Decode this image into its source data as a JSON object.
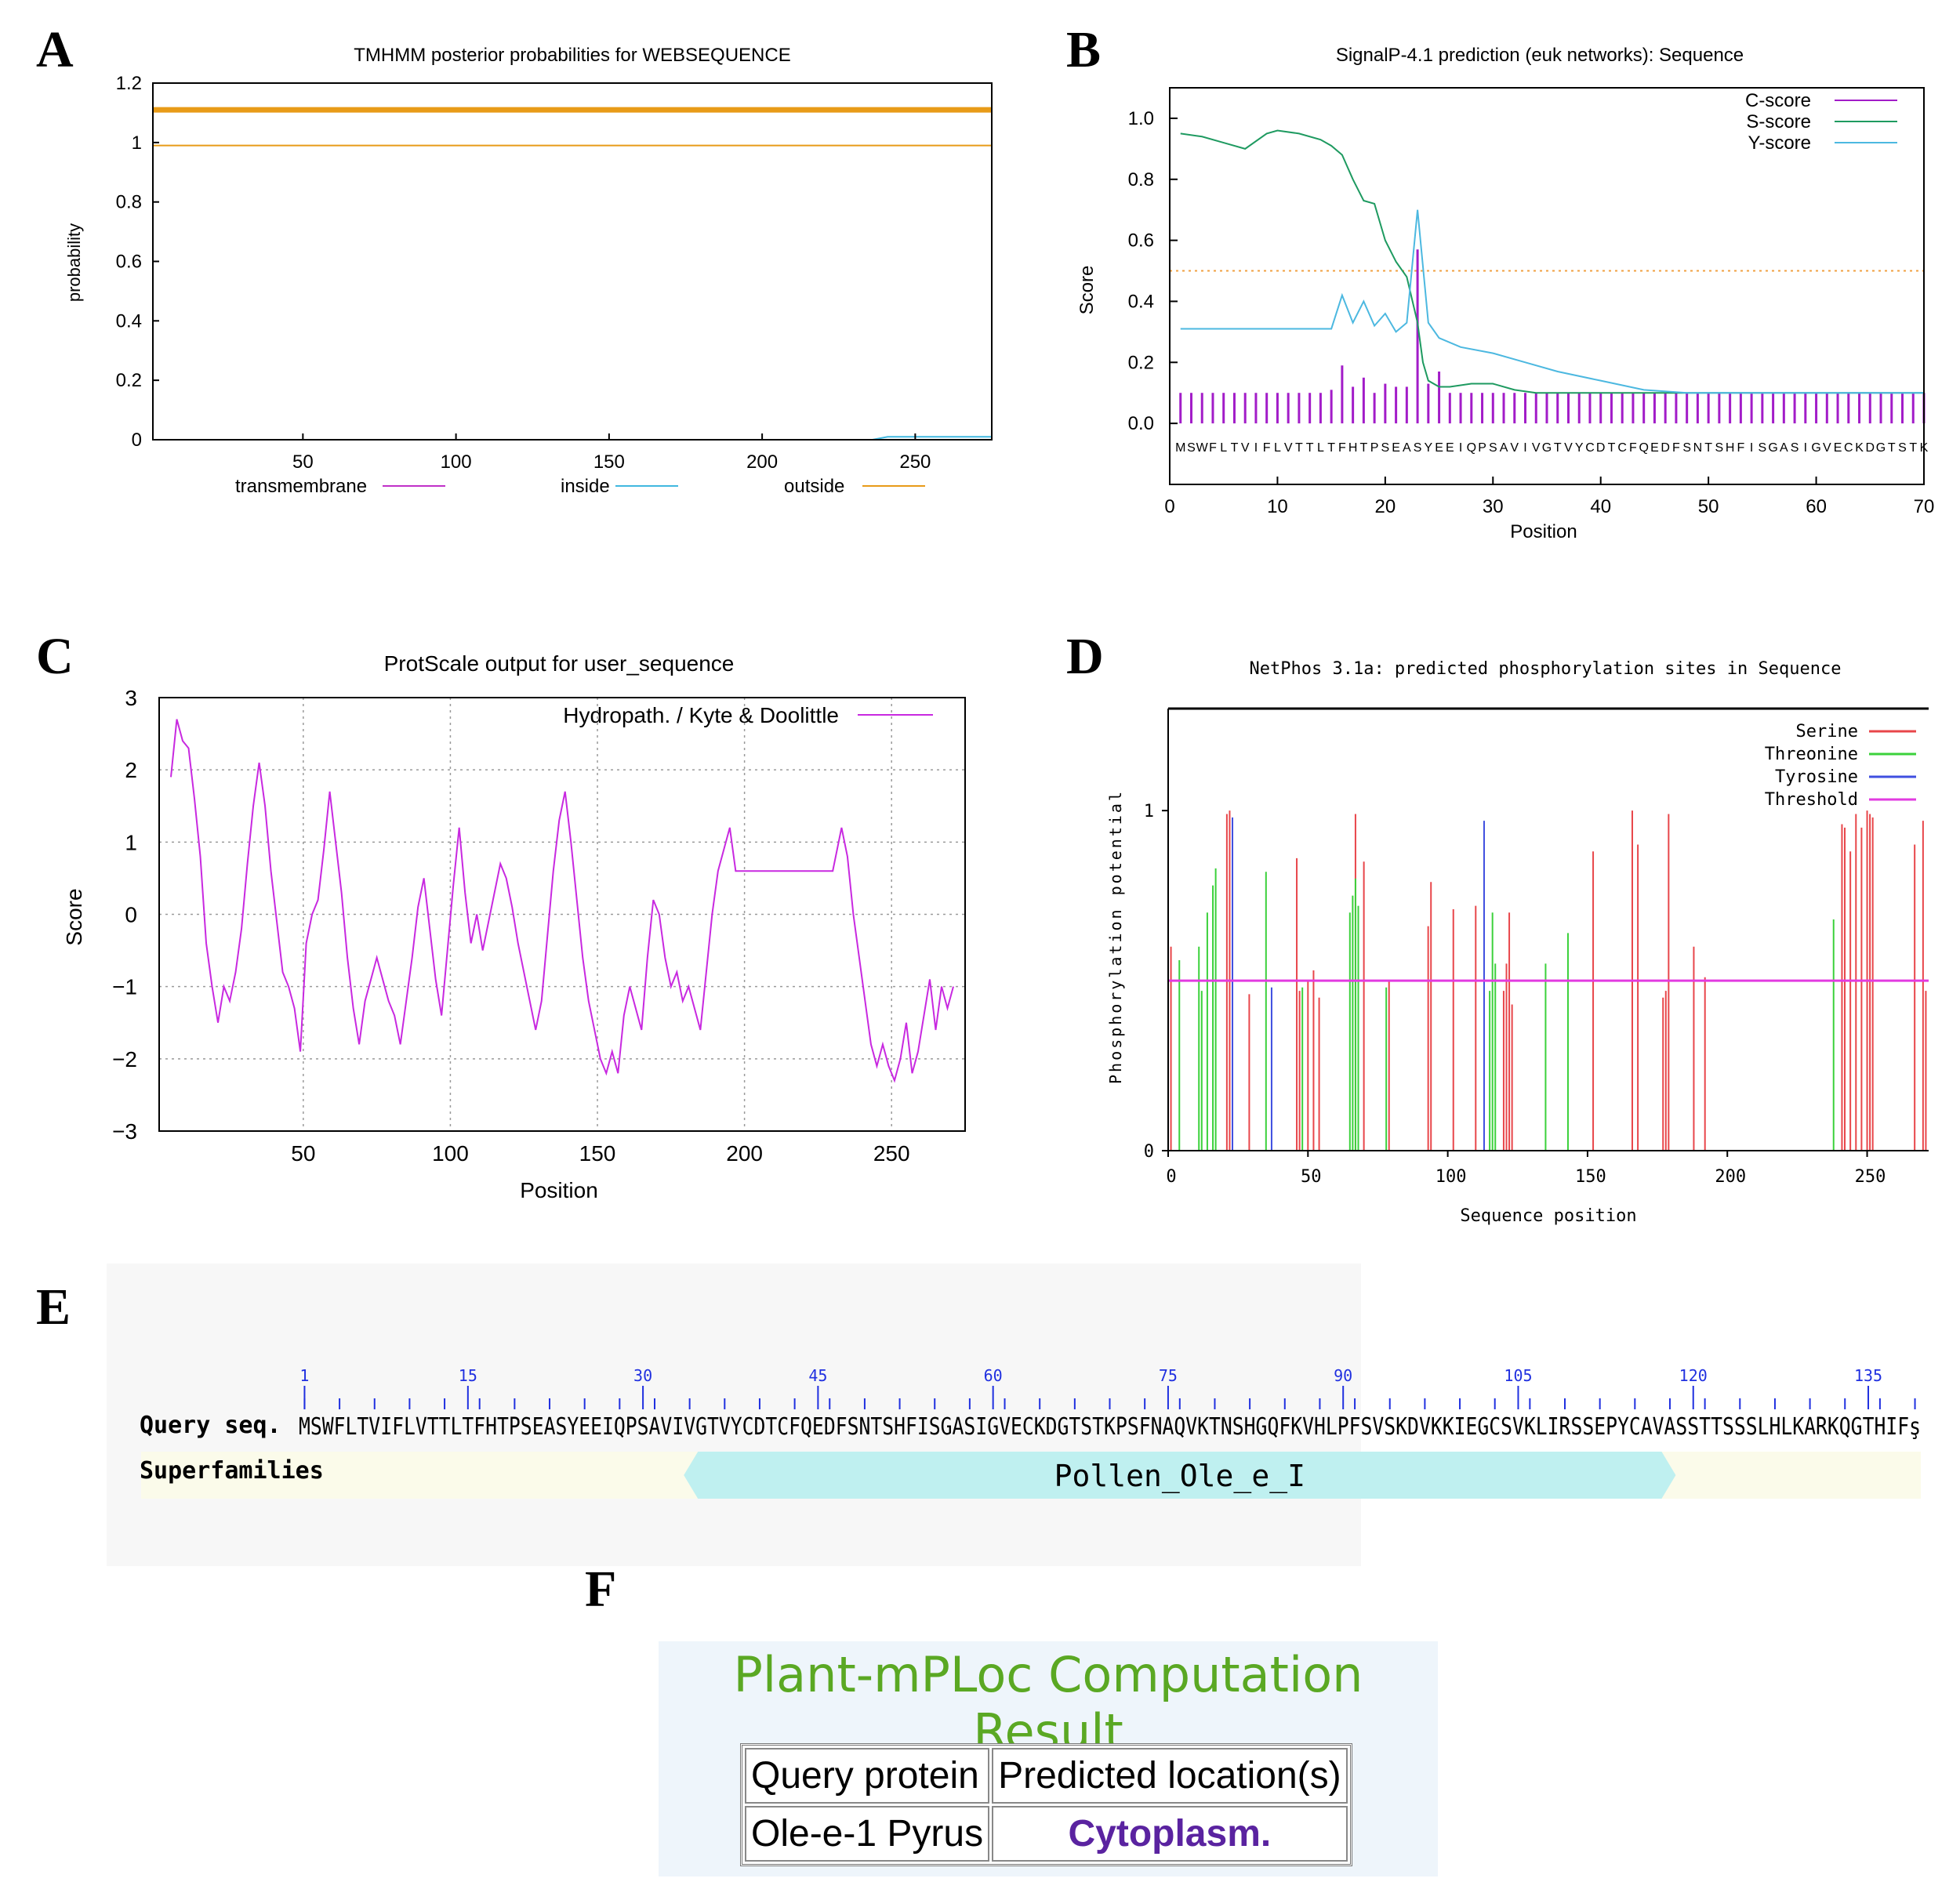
{
  "letters": [
    "A",
    "B",
    "C",
    "D",
    "E",
    "F"
  ],
  "chart_data": [
    {
      "panel": "A",
      "type": "line",
      "title": "TMHMM posterior probabilities for WEBSEQUENCE",
      "xlabel": "",
      "ylabel": "probability",
      "xlim": [
        1,
        275
      ],
      "ylim": [
        0,
        1.2
      ],
      "xticks": [
        50,
        100,
        150,
        200,
        250
      ],
      "yticks": [
        0,
        0.2,
        0.4,
        0.6,
        0.8,
        1,
        1.2
      ],
      "ytick_labels": [
        "0",
        "0.2",
        "0.4",
        "0.6",
        "0.8",
        "1",
        "1.2"
      ],
      "series": [
        {
          "name": "transmembrane",
          "color": "#c030c8",
          "x": [
            1,
            275
          ],
          "y": [
            0,
            0
          ]
        },
        {
          "name": "inside",
          "color": "#40b8e0",
          "x": [
            1,
            236,
            241,
            275
          ],
          "y": [
            0.0,
            0.0,
            0.01,
            0.01
          ]
        },
        {
          "name": "outside",
          "color": "#e89b18",
          "x": [
            1,
            275
          ],
          "y": [
            0.99,
            0.99
          ]
        },
        {
          "name": "outside_bar",
          "color": "#e89b18",
          "x": [
            1,
            275
          ],
          "y": [
            1.11,
            1.11
          ]
        }
      ],
      "legend": [
        "transmembrane",
        "inside",
        "outside"
      ]
    },
    {
      "panel": "B",
      "type": "line",
      "title": "SignalP-4.1 prediction (euk networks): Sequence",
      "xlabel": "Position",
      "ylabel": "Score",
      "xlim": [
        0,
        70
      ],
      "ylim": [
        -0.2,
        1.1
      ],
      "xticks": [
        0,
        10,
        20,
        30,
        40,
        50,
        60,
        70
      ],
      "yticks": [
        0.0,
        0.2,
        0.4,
        0.6,
        0.8,
        1.0
      ],
      "ytick_labels": [
        "0.0",
        "0.2",
        "0.4",
        "0.6",
        "0.8",
        "1.0"
      ],
      "threshold": 0.5,
      "sequence": "MSWFLTVIFLVTTLTFHTPSEASYEEIQPSAVIVGTVYCDTCFQEDFSNTSHFISGASIGVECKDGTSTK",
      "series": [
        {
          "name": "C-score",
          "color": "#a21cc8",
          "x": [
            1,
            2,
            3,
            4,
            5,
            6,
            7,
            8,
            9,
            10,
            11,
            12,
            13,
            14,
            15,
            16,
            17,
            18,
            19,
            20,
            21,
            22,
            23,
            24,
            25,
            26,
            27,
            28,
            29,
            30,
            31,
            32,
            33,
            34,
            35,
            36,
            37,
            38,
            39,
            40,
            41,
            42,
            43,
            44,
            45,
            46,
            47,
            48,
            49,
            50,
            51,
            52,
            53,
            54,
            55,
            56,
            57,
            58,
            59,
            60,
            61,
            62,
            63,
            64,
            65,
            66,
            67,
            68,
            69,
            70
          ],
          "y": [
            0.1,
            0.1,
            0.1,
            0.1,
            0.1,
            0.1,
            0.1,
            0.1,
            0.1,
            0.1,
            0.1,
            0.1,
            0.1,
            0.1,
            0.11,
            0.19,
            0.12,
            0.15,
            0.1,
            0.13,
            0.12,
            0.12,
            0.57,
            0.13,
            0.17,
            0.1,
            0.1,
            0.1,
            0.1,
            0.1,
            0.1,
            0.1,
            0.1,
            0.1,
            0.1,
            0.1,
            0.1,
            0.1,
            0.1,
            0.1,
            0.1,
            0.1,
            0.1,
            0.1,
            0.1,
            0.1,
            0.1,
            0.1,
            0.1,
            0.1,
            0.1,
            0.1,
            0.1,
            0.1,
            0.1,
            0.1,
            0.1,
            0.1,
            0.1,
            0.1,
            0.1,
            0.1,
            0.1,
            0.1,
            0.1,
            0.1,
            0.1,
            0.1,
            0.1,
            0.1
          ]
        },
        {
          "name": "S-score",
          "color": "#1e9a60",
          "x": [
            1,
            3,
            5,
            7,
            9,
            10,
            12,
            14,
            15,
            16,
            17,
            18,
            19,
            20,
            21,
            22,
            23,
            23.5,
            24,
            25,
            26,
            28,
            30,
            32,
            34,
            36,
            38,
            40,
            45,
            50,
            55,
            60,
            65,
            70
          ],
          "y": [
            0.95,
            0.94,
            0.92,
            0.9,
            0.95,
            0.96,
            0.95,
            0.93,
            0.91,
            0.88,
            0.8,
            0.73,
            0.72,
            0.6,
            0.53,
            0.48,
            0.33,
            0.2,
            0.14,
            0.12,
            0.12,
            0.13,
            0.13,
            0.11,
            0.1,
            0.1,
            0.1,
            0.1,
            0.1,
            0.1,
            0.1,
            0.1,
            0.1,
            0.1
          ]
        },
        {
          "name": "Y-score",
          "color": "#4cb8e0",
          "x": [
            1,
            4,
            8,
            12,
            15,
            16,
            17,
            18,
            19,
            20,
            21,
            22,
            23,
            24,
            25,
            27,
            30,
            33,
            36,
            40,
            44,
            48,
            55,
            62,
            70
          ],
          "y": [
            0.31,
            0.31,
            0.31,
            0.31,
            0.31,
            0.42,
            0.33,
            0.4,
            0.32,
            0.36,
            0.3,
            0.33,
            0.7,
            0.33,
            0.28,
            0.25,
            0.23,
            0.2,
            0.17,
            0.14,
            0.11,
            0.1,
            0.1,
            0.1,
            0.1
          ]
        }
      ],
      "legend": [
        "C-score",
        "S-score",
        "Y-score"
      ]
    },
    {
      "panel": "C",
      "type": "line",
      "title": "ProtScale output for user_sequence",
      "xlabel": "Position",
      "ylabel": "Score",
      "xlim": [
        1,
        275
      ],
      "ylim": [
        -3,
        3
      ],
      "xticks": [
        50,
        100,
        150,
        200,
        250
      ],
      "yticks": [
        -3,
        -2,
        -1,
        0,
        1,
        2,
        3
      ],
      "ytick_labels": [
        "−3",
        "−2",
        "−1",
        "0",
        "1",
        "2",
        "3"
      ],
      "series": [
        {
          "name": "Hydropath. / Kyte & Doolittle",
          "color": "#c829e0",
          "x": [
            5,
            7,
            9,
            11,
            13,
            15,
            17,
            19,
            21,
            23,
            25,
            27,
            29,
            31,
            33,
            35,
            37,
            39,
            41,
            43,
            45,
            47,
            49,
            51,
            53,
            55,
            57,
            59,
            61,
            63,
            65,
            67,
            69,
            71,
            73,
            75,
            77,
            79,
            81,
            83,
            85,
            87,
            89,
            91,
            93,
            95,
            97,
            99,
            101,
            103,
            105,
            107,
            109,
            111,
            113,
            115,
            117,
            119,
            121,
            123,
            125,
            127,
            129,
            131,
            133,
            135,
            137,
            139,
            141,
            143,
            145,
            147,
            149,
            151,
            153,
            155,
            157,
            159,
            161,
            163,
            165,
            167,
            169,
            171,
            173,
            175,
            177,
            179,
            181,
            183,
            185,
            187,
            189,
            191,
            193,
            195,
            197,
            199,
            201,
            205,
            210,
            215,
            220,
            225,
            230,
            233,
            235,
            237,
            239,
            241,
            243,
            245,
            247,
            249,
            251,
            253,
            255,
            257,
            259,
            261,
            263,
            265,
            267,
            269,
            271
          ],
          "y": [
            1.9,
            2.7,
            2.4,
            2.3,
            1.6,
            0.8,
            -0.4,
            -1.0,
            -1.5,
            -1.0,
            -1.2,
            -0.8,
            -0.2,
            0.7,
            1.5,
            2.1,
            1.5,
            0.6,
            -0.1,
            -0.8,
            -1.0,
            -1.3,
            -1.9,
            -0.4,
            0.0,
            0.2,
            0.9,
            1.7,
            1.0,
            0.3,
            -0.6,
            -1.3,
            -1.8,
            -1.2,
            -0.9,
            -0.6,
            -0.9,
            -1.2,
            -1.4,
            -1.8,
            -1.2,
            -0.6,
            0.1,
            0.5,
            -0.2,
            -0.9,
            -1.4,
            -0.5,
            0.4,
            1.2,
            0.3,
            -0.4,
            0.0,
            -0.5,
            -0.1,
            0.3,
            0.7,
            0.5,
            0.1,
            -0.4,
            -0.8,
            -1.2,
            -1.6,
            -1.2,
            -0.3,
            0.6,
            1.3,
            1.7,
            1.0,
            0.2,
            -0.6,
            -1.2,
            -1.6,
            -2.0,
            -2.2,
            -1.9,
            -2.2,
            -1.4,
            -1.0,
            -1.3,
            -1.6,
            -0.6,
            0.2,
            0.0,
            -0.6,
            -1.0,
            -0.8,
            -1.2,
            -1.0,
            -1.3,
            -1.6,
            -0.8,
            0.0,
            0.6,
            0.9,
            1.2,
            0.6,
            0.6,
            0.6,
            0.6,
            0.6,
            0.6,
            0.6,
            0.6,
            0.6,
            1.2,
            0.8,
            0.0,
            -0.6,
            -1.2,
            -1.8,
            -2.1,
            -1.8,
            -2.1,
            -2.3,
            -2.0,
            -1.5,
            -2.2,
            -1.9,
            -1.4,
            -0.9,
            -1.6,
            -1.0,
            -1.3,
            -1.0
          ]
        }
      ],
      "legend": [
        "Hydropath. / Kyte & Doolittle"
      ]
    },
    {
      "panel": "D",
      "type": "bar",
      "title": "NetPhos 3.1a: predicted phosphorylation sites in Sequence",
      "xlabel": "Sequence position",
      "ylabel": "Phosphorylation potential",
      "xlim": [
        0,
        272
      ],
      "ylim": [
        0,
        1.3
      ],
      "xticks": [
        0,
        50,
        100,
        150,
        200,
        250
      ],
      "yticks": [
        0,
        1
      ],
      "ytick_labels": [
        "0",
        "1"
      ],
      "threshold": 0.5,
      "series": [
        {
          "name": "Serine",
          "color": "#e8464a",
          "x": [
            1,
            21,
            22,
            29,
            46,
            47,
            50,
            52,
            54,
            67,
            70,
            79,
            93,
            94,
            102,
            110,
            120,
            121,
            122,
            123,
            152,
            166,
            168,
            177,
            178,
            179,
            188,
            192,
            241,
            242,
            244,
            246,
            248,
            250,
            251,
            252,
            267,
            270,
            271
          ],
          "values": [
            0.6,
            0.99,
            1.0,
            0.46,
            0.86,
            0.47,
            0.5,
            0.53,
            0.45,
            0.99,
            0.85,
            0.5,
            0.66,
            0.79,
            0.71,
            0.72,
            0.47,
            0.55,
            0.7,
            0.43,
            0.88,
            1.0,
            0.9,
            0.45,
            0.47,
            0.99,
            0.6,
            0.51,
            0.96,
            0.95,
            0.88,
            0.99,
            0.95,
            1.0,
            0.99,
            0.98,
            0.9,
            0.97,
            0.47
          ]
        },
        {
          "name": "Threonine",
          "color": "#3bd13b",
          "x": [
            4,
            11,
            12,
            14,
            16,
            17,
            35,
            48,
            65,
            66,
            67,
            68,
            78,
            115,
            116,
            117,
            135,
            143,
            238
          ],
          "values": [
            0.56,
            0.6,
            0.47,
            0.7,
            0.78,
            0.83,
            0.82,
            0.48,
            0.7,
            0.75,
            0.8,
            0.72,
            0.48,
            0.47,
            0.7,
            0.55,
            0.55,
            0.64,
            0.68
          ]
        },
        {
          "name": "Tyrosine",
          "color": "#3f4fe0",
          "x": [
            23,
            37,
            113
          ],
          "values": [
            0.98,
            0.48,
            0.97
          ]
        },
        {
          "name": "Threshold",
          "color": "#e23be0",
          "x": [
            0,
            272
          ],
          "values": [
            0.5,
            0.5
          ]
        }
      ],
      "legend": [
        "Serine",
        "Threonine",
        "Tyrosine",
        "Threshold"
      ]
    }
  ],
  "panelE": {
    "row1_label": "Query seq.",
    "row2_label": "Superfamilies",
    "sequence": "MSWFLTVIFLVTTLTFHTPSEASYEEIQPSAVIVGTVYCDTCFQEDFSNTSHFISGASIGVECKDGTSTKPSFNAQVKTNSHGQFKVHLPFSVSKDVKKIEGCSVKLIRSSEPYCAVASSTTSSSLHLKARKQGTHIFş",
    "ticks": [
      "1",
      "15",
      "30",
      "45",
      "60",
      "75",
      "90",
      "105",
      "120",
      "135"
    ],
    "domain_name": "Pollen_Ole_e_I",
    "domain_color": "#bff0f0",
    "domain_start": 34,
    "domain_end": 118,
    "track_color": "#fbfbea"
  },
  "panelF": {
    "title": "Plant-mPLoc Computation Result",
    "col1_header": "Query protein",
    "col2_header": "Predicted location(s)",
    "protein": "Ole-e-1 Pyrus",
    "location": "Cytoplasm."
  }
}
